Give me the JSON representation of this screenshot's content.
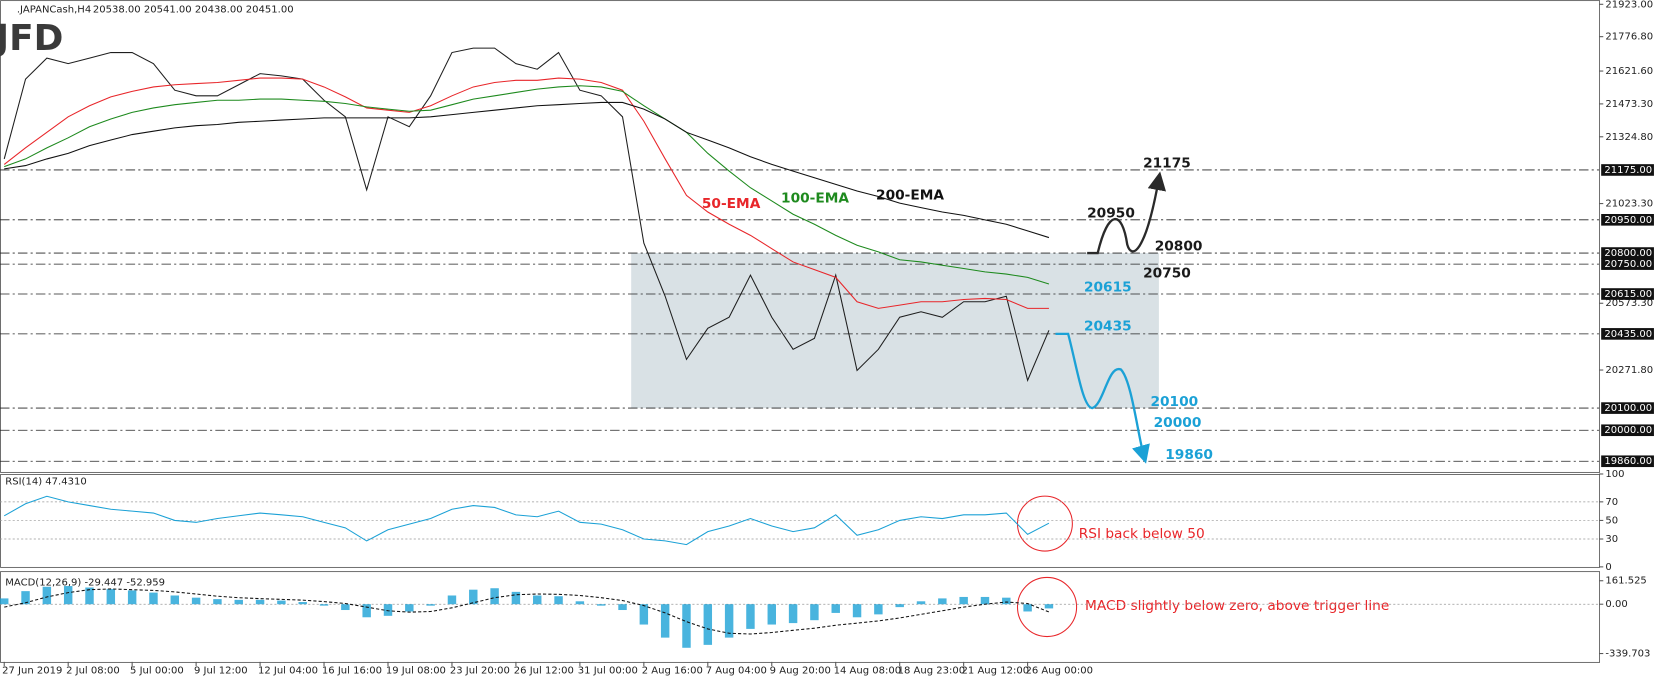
{
  "chart_data": [
    {
      "type": "line",
      "title": ".JAPANCash,H4",
      "ohlc": "20538.00 20541.00 20438.00 20451.00",
      "logo": "JFD",
      "categories": [
        "27 Jun 2019",
        null,
        null,
        "2 Jul 08:00",
        null,
        null,
        "5 Jul 00:00",
        null,
        null,
        "9 Jul 12:00",
        null,
        null,
        "12 Jul 04:00",
        null,
        null,
        "16 Jul 16:00",
        null,
        null,
        "19 Jul 08:00",
        null,
        null,
        "23 Jul 20:00",
        null,
        null,
        "26 Jul 12:00",
        null,
        null,
        "31 Jul 00:00",
        null,
        null,
        "2 Aug 16:00",
        null,
        null,
        "7 Aug 04:00",
        null,
        null,
        "9 Aug 20:00",
        null,
        null,
        "14 Aug 08:00",
        null,
        null,
        "18 Aug 23:00",
        null,
        null,
        "21 Aug 12:00",
        null,
        null,
        "26 Aug 00:00",
        null
      ],
      "series": [
        {
          "color": "#1e1e1e",
          "values": [
            21225,
            21585,
            21680,
            21655,
            21680,
            21705,
            21705,
            21655,
            21535,
            21510,
            21510,
            21560,
            21610,
            21600,
            21585,
            21490,
            21415,
            21085,
            21415,
            21370,
            21510,
            21705,
            21725,
            21725,
            21655,
            21630,
            21705,
            21535,
            21510,
            21415,
            20845,
            20605,
            20320,
            20460,
            20510,
            20700,
            20510,
            20365,
            20415,
            20700,
            20270,
            20365,
            20510,
            20535,
            20510,
            20580,
            20580,
            20605,
            20225,
            20451
          ]
        },
        {
          "name": "50-EMA",
          "color": "#e8262a",
          "values": [
            21200,
            21275,
            21345,
            21415,
            21465,
            21505,
            21530,
            21550,
            21560,
            21565,
            21570,
            21580,
            21590,
            21590,
            21585,
            21550,
            21505,
            21455,
            21445,
            21435,
            21465,
            21510,
            21550,
            21570,
            21580,
            21580,
            21590,
            21585,
            21570,
            21535,
            21395,
            21225,
            21060,
            20985,
            20930,
            20880,
            20820,
            20760,
            20725,
            20690,
            20580,
            20550,
            20565,
            20580,
            20580,
            20590,
            20595,
            20590,
            20550,
            20550
          ]
        },
        {
          "name": "100-EMA",
          "color": "#1e8a1e",
          "values": [
            21190,
            21225,
            21275,
            21320,
            21370,
            21405,
            21435,
            21455,
            21470,
            21480,
            21490,
            21490,
            21495,
            21495,
            21490,
            21485,
            21475,
            21460,
            21450,
            21440,
            21445,
            21470,
            21495,
            21510,
            21525,
            21540,
            21550,
            21555,
            21550,
            21530,
            21465,
            21405,
            21345,
            21250,
            21170,
            21095,
            21035,
            20975,
            20930,
            20880,
            20835,
            20805,
            20770,
            20760,
            20745,
            20730,
            20715,
            20705,
            20690,
            20660
          ]
        },
        {
          "name": "200-EMA",
          "color": "#111111",
          "values": [
            21180,
            21195,
            21225,
            21250,
            21285,
            21310,
            21335,
            21350,
            21365,
            21375,
            21380,
            21390,
            21395,
            21400,
            21405,
            21410,
            21410,
            21410,
            21410,
            21410,
            21415,
            21425,
            21435,
            21445,
            21455,
            21465,
            21470,
            21475,
            21480,
            21480,
            21450,
            21405,
            21345,
            21310,
            21275,
            21235,
            21200,
            21170,
            21140,
            21110,
            21080,
            21055,
            21025,
            21005,
            20985,
            20970,
            20950,
            20930,
            20900,
            20870
          ]
        }
      ],
      "ylim": [
        19812,
        21942
      ],
      "yticks": [
        {
          "value": 21923,
          "label": "21923.00"
        },
        {
          "value": 21776.8,
          "label": "21776.80"
        },
        {
          "value": 21621.6,
          "label": "21621.60"
        },
        {
          "value": 21473.3,
          "label": "21473.30"
        },
        {
          "value": 21324.8,
          "label": "21324.80"
        },
        {
          "value": 21023.3,
          "label": "21023.30"
        },
        {
          "value": 20573.3,
          "label": "20573.30"
        },
        {
          "value": 20271.8,
          "label": "20271.80"
        }
      ],
      "levels": [
        {
          "value": 21175,
          "label": "21175.00",
          "color": "#1a1a1a"
        },
        {
          "value": 20950,
          "label": "20950.00",
          "color": "#1a1a1a"
        },
        {
          "value": 20800,
          "label": "20800.00",
          "color": "#1a1a1a"
        },
        {
          "value": 20750,
          "label": "20750.00",
          "color": "#1a1a1a"
        },
        {
          "value": 20615,
          "label": "20615.00",
          "color": "#1ba1d6"
        },
        {
          "value": 20435,
          "label": "20435.00",
          "color": "#1ba1d6"
        },
        {
          "value": 20100,
          "label": "20100.00",
          "color": "#1ba1d6"
        },
        {
          "value": 20000,
          "label": "20000.00",
          "color": "#1ba1d6"
        },
        {
          "value": 19860,
          "label": "19860.00",
          "color": "#1ba1d6"
        }
      ]
    },
    {
      "type": "line",
      "title": "RSI(14) 47.4310",
      "annotation": "RSI back below 50",
      "series": [
        {
          "color": "#1ba1d6",
          "values": [
            55,
            68,
            76,
            70,
            66,
            62,
            60,
            58,
            50,
            48,
            52,
            55,
            58,
            56,
            54,
            48,
            42,
            28,
            40,
            46,
            52,
            62,
            66,
            64,
            56,
            54,
            60,
            48,
            46,
            40,
            30,
            28,
            24,
            38,
            44,
            52,
            44,
            38,
            42,
            56,
            34,
            40,
            50,
            54,
            52,
            56,
            56,
            58,
            35,
            47
          ]
        }
      ],
      "ylim": [
        0,
        100
      ],
      "yticks": [
        100,
        70,
        50,
        30,
        0
      ]
    },
    {
      "type": "bar",
      "title": "MACD(12,26,9) -29.447 -52.959",
      "annotation": "MACD slightly below zero, above trigger line",
      "series": [
        {
          "type": "bar",
          "color": "#1ba1d6",
          "values": [
            40,
            90,
            120,
            125,
            115,
            105,
            95,
            80,
            60,
            45,
            35,
            30,
            30,
            25,
            15,
            -10,
            -40,
            -90,
            -80,
            -50,
            -10,
            60,
            100,
            110,
            85,
            60,
            55,
            20,
            -10,
            -40,
            -140,
            -230,
            -300,
            -280,
            -230,
            -170,
            -140,
            -130,
            -110,
            -60,
            -90,
            -70,
            -20,
            20,
            40,
            50,
            50,
            45,
            -50,
            -29
          ]
        },
        {
          "type": "line",
          "color": "#111111",
          "dashed": true,
          "values": [
            -20,
            10,
            50,
            80,
            100,
            105,
            100,
            95,
            85,
            70,
            55,
            45,
            38,
            33,
            28,
            18,
            5,
            -20,
            -45,
            -55,
            -50,
            -25,
            10,
            45,
            65,
            70,
            68,
            60,
            45,
            25,
            -10,
            -60,
            -120,
            -170,
            -200,
            -205,
            -195,
            -180,
            -165,
            -145,
            -130,
            -115,
            -95,
            -70,
            -45,
            -20,
            0,
            15,
            5,
            -53
          ]
        }
      ],
      "ylim": [
        -397,
        228
      ],
      "yticks": [
        161.525,
        {
          "value": 0,
          "label": "0.00"
        },
        -339.703
      ]
    }
  ]
}
